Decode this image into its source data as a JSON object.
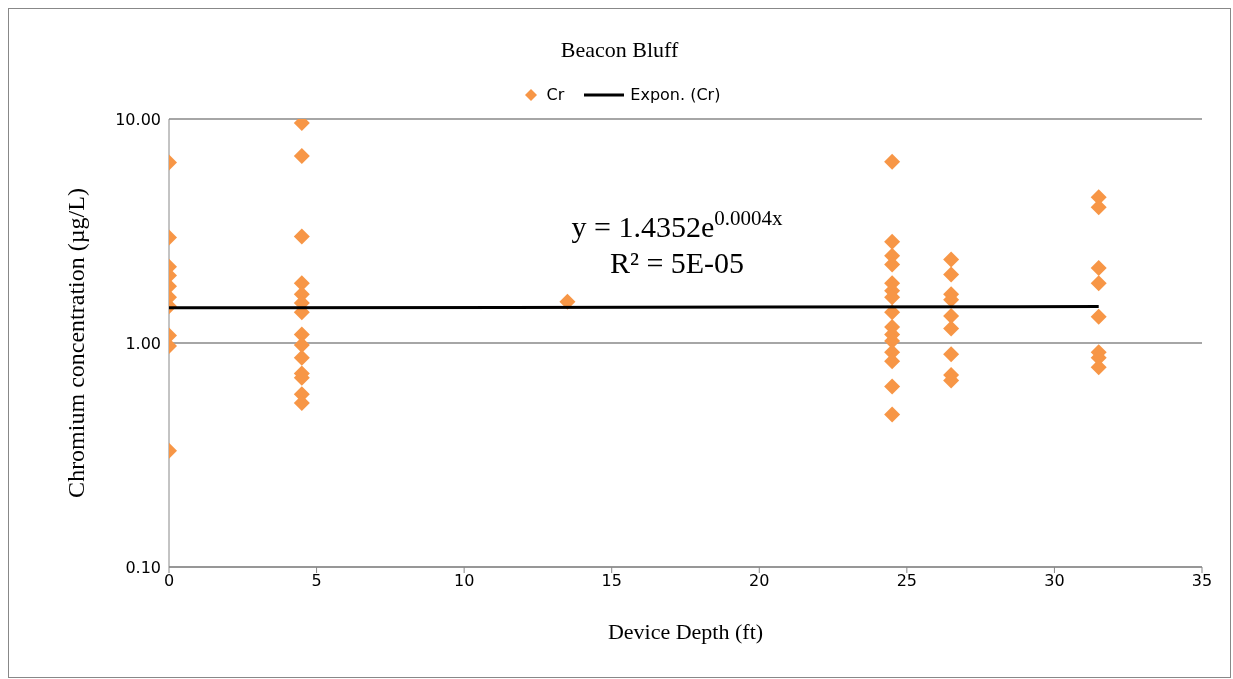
{
  "chart_data": {
    "type": "scatter",
    "title": "Beacon Bluff",
    "xlabel": "Device Depth (ft)",
    "ylabel": "Chromium concentration (µg/L)",
    "series": [
      {
        "name": "Cr",
        "color": "#f79646",
        "marker": "diamond",
        "x": [
          0,
          0,
          0,
          0,
          0,
          0,
          0,
          0,
          0,
          0,
          4.5,
          4.5,
          4.5,
          4.5,
          4.5,
          4.5,
          4.5,
          4.5,
          4.5,
          4.5,
          4.5,
          4.5,
          4.5,
          4.5,
          13.5,
          24.5,
          24.5,
          24.5,
          24.5,
          24.5,
          24.5,
          24.5,
          24.5,
          24.5,
          24.5,
          24.5,
          24.5,
          24.5,
          24.5,
          24.5,
          26.5,
          26.5,
          26.5,
          26.5,
          26.5,
          26.5,
          26.5,
          26.5,
          26.5,
          31.5,
          31.5,
          31.5,
          31.5,
          31.5,
          31.5,
          31.5,
          31.5
        ],
        "values": [
          6.4,
          2.96,
          2.19,
          2.0,
          1.79,
          1.6,
          1.46,
          1.08,
          0.97,
          0.33,
          9.6,
          6.84,
          2.99,
          1.85,
          1.65,
          1.51,
          1.37,
          1.09,
          0.98,
          0.86,
          0.73,
          0.7,
          0.59,
          0.54,
          1.53,
          6.45,
          2.83,
          2.45,
          2.24,
          1.85,
          1.71,
          1.6,
          1.37,
          1.18,
          1.09,
          1.02,
          0.91,
          0.83,
          0.64,
          0.48,
          2.36,
          2.02,
          1.65,
          1.56,
          1.32,
          1.16,
          0.89,
          0.72,
          0.68,
          4.47,
          4.04,
          2.16,
          1.85,
          1.31,
          0.91,
          0.86,
          0.78
        ]
      },
      {
        "name": "Expon. (Cr)",
        "type": "line",
        "color": "#000000",
        "marker": "none",
        "x": [
          0,
          31.5
        ],
        "values": [
          1.4352,
          1.4535
        ]
      }
    ],
    "annotations": [
      "y = 1.4352e$^{0.0004x}$\nR² = 5E-05"
    ],
    "xlim": [
      0,
      35
    ],
    "xticks": [
      0,
      5,
      10,
      15,
      20,
      25,
      30,
      35
    ],
    "ylim": [
      0.1,
      10
    ],
    "yticks": [
      {
        "value": 0.1,
        "label": "0.10"
      },
      {
        "value": 1,
        "label": "1.00"
      },
      {
        "value": 10,
        "label": "10.00"
      }
    ],
    "log": "y",
    "grid": "y",
    "legend": "top"
  }
}
